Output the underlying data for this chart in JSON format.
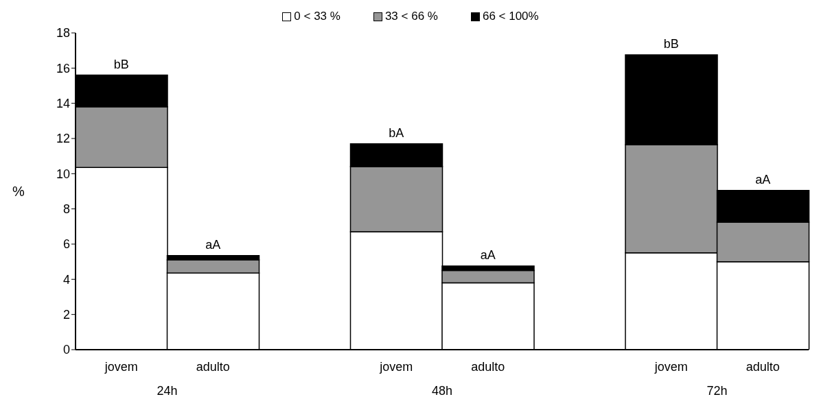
{
  "chart_data": {
    "type": "bar",
    "stacked": true,
    "ylabel": "%",
    "categories": [
      "jovem",
      "adulto",
      null,
      "jovem",
      "adulto",
      null,
      "jovem",
      "adulto"
    ],
    "series": [
      {
        "name": "0 < 33 %",
        "color": "#ffffff",
        "values": [
          10.35,
          4.35,
          null,
          6.7,
          3.8,
          null,
          5.5,
          5.0
        ]
      },
      {
        "name": "33 < 66 %",
        "color": "#969696",
        "values": [
          3.45,
          0.75,
          null,
          3.7,
          0.7,
          null,
          6.15,
          2.25
        ]
      },
      {
        "name": "66 < 100%",
        "color": "#000000",
        "values": [
          1.8,
          0.25,
          null,
          1.3,
          0.25,
          null,
          5.1,
          1.8
        ]
      }
    ],
    "ylim": [
      0,
      18
    ],
    "yticks": [
      0,
      2,
      4,
      6,
      8,
      10,
      12,
      14,
      16,
      18
    ],
    "grid": false,
    "legend": "top",
    "annotations": [
      "24h",
      "48h",
      "72h",
      {
        "text": "bB",
        "y": 15.6
      },
      {
        "text": "aA",
        "y": 5.35
      },
      {
        "text": "bA",
        "y": 11.7
      },
      {
        "text": "aA",
        "y": 4.75
      },
      {
        "text": "bB",
        "y": 16.75
      },
      {
        "text": "aA",
        "y": 9.05
      }
    ]
  }
}
